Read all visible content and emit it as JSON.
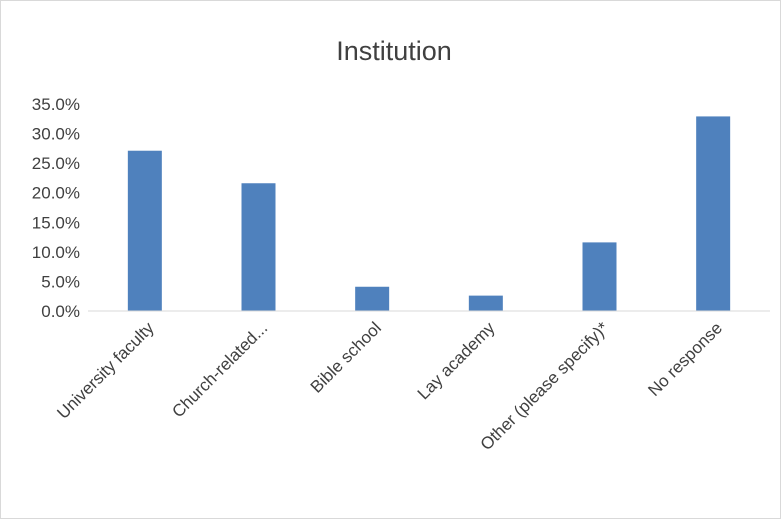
{
  "chart_data": {
    "type": "bar",
    "title": "Institution",
    "xlabel": "",
    "ylabel": "",
    "categories": [
      "University faculty",
      "Church-related...",
      "Bible school",
      "Lay academy",
      "Other (please specify)*",
      "No response"
    ],
    "values": [
      27.1,
      21.6,
      4.1,
      2.6,
      11.6,
      32.9
    ],
    "ylim": [
      0,
      35
    ],
    "yticks": [
      "0.0%",
      "5.0%",
      "10.0%",
      "15.0%",
      "20.0%",
      "25.0%",
      "30.0%",
      "35.0%"
    ],
    "bar_color": "#4f81bd",
    "grid": false,
    "legend": "none"
  }
}
